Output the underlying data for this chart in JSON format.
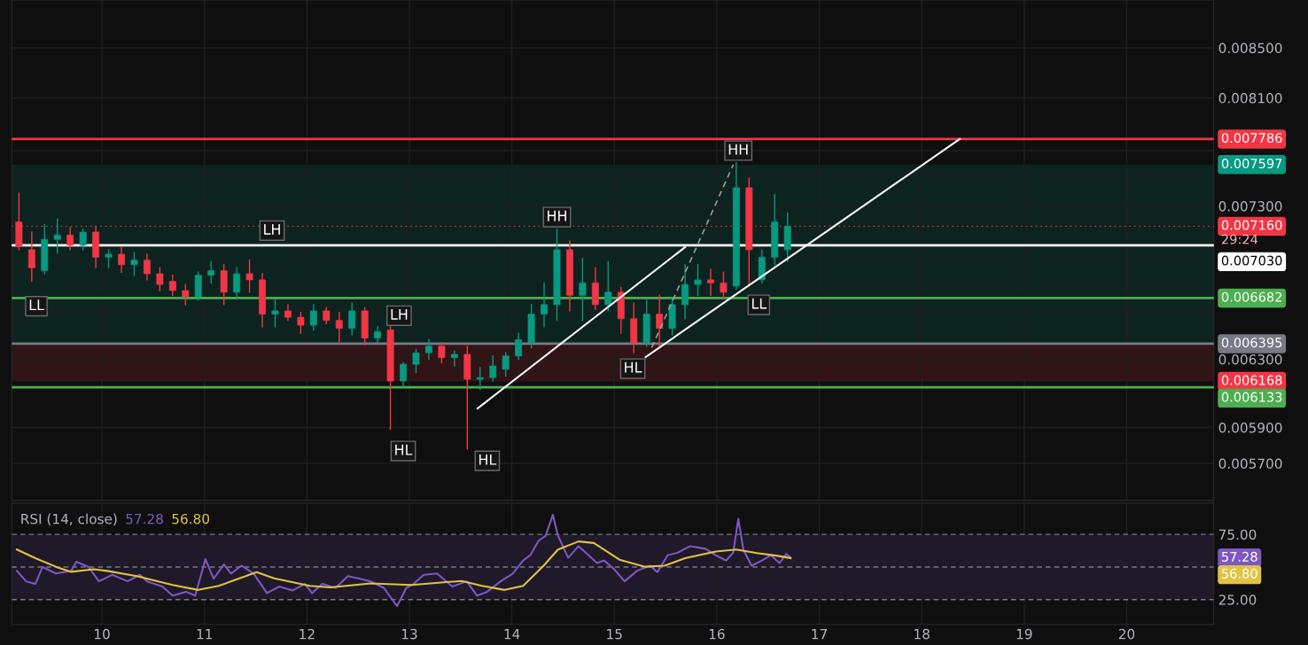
{
  "chart_data": [
    {
      "type": "candlestick",
      "log": "y",
      "grid": true,
      "tick_labels": "y",
      "xlim": [
        9.12,
        20.85
      ],
      "ylim": [
        0.0055,
        0.0089
      ],
      "xticks": [
        10,
        11,
        12,
        13,
        14,
        15,
        16,
        17,
        18,
        19,
        20
      ],
      "yticks": [
        {
          "value": 0.0085,
          "label": "0.008500"
        },
        {
          "value": 0.0081,
          "label": "0.008100"
        },
        {
          "value": 0.0077,
          "label": null
        },
        {
          "value": 0.0073,
          "label": "0.007300"
        },
        {
          "value": 0.0066,
          "label": null
        },
        {
          "value": 0.0063,
          "label": "0.006300"
        },
        {
          "value": 0.0059,
          "label": "0.005900"
        },
        {
          "value": 0.0057,
          "label": "0.005700"
        }
      ],
      "x": [
        9.19,
        9.315,
        9.44,
        9.565,
        9.69,
        9.815,
        9.94,
        10.065,
        10.19,
        10.315,
        10.44,
        10.565,
        10.69,
        10.815,
        10.94,
        11.065,
        11.19,
        11.315,
        11.44,
        11.565,
        11.69,
        11.815,
        11.94,
        12.065,
        12.19,
        12.315,
        12.44,
        12.565,
        12.69,
        12.815,
        12.94,
        13.065,
        13.19,
        13.315,
        13.44,
        13.565,
        13.69,
        13.815,
        13.94,
        14.065,
        14.19,
        14.315,
        14.44,
        14.565,
        14.69,
        14.815,
        14.94,
        15.065,
        15.19,
        15.315,
        15.44,
        15.565,
        15.69,
        15.815,
        15.94,
        16.065,
        16.19,
        16.315,
        16.44,
        16.565,
        16.69
      ],
      "ohlc": [
        [
          0.00719,
          0.00739,
          0.007,
          0.00702
        ],
        [
          0.007,
          0.00712,
          0.00679,
          0.00688
        ],
        [
          0.00686,
          0.00717,
          0.00684,
          0.00707
        ],
        [
          0.00707,
          0.00721,
          0.00698,
          0.0071
        ],
        [
          0.0071,
          0.00715,
          0.007,
          0.00703
        ],
        [
          0.00703,
          0.00714,
          0.007,
          0.00712
        ],
        [
          0.00712,
          0.00716,
          0.00688,
          0.00695
        ],
        [
          0.00695,
          0.007,
          0.00688,
          0.00697
        ],
        [
          0.00697,
          0.00702,
          0.00685,
          0.0069
        ],
        [
          0.0069,
          0.00698,
          0.00683,
          0.00693
        ],
        [
          0.00693,
          0.00697,
          0.0068,
          0.00684
        ],
        [
          0.00684,
          0.00688,
          0.00673,
          0.00677
        ],
        [
          0.00679,
          0.00683,
          0.0067,
          0.00673
        ],
        [
          0.00673,
          0.00677,
          0.00664,
          0.00669
        ],
        [
          0.00669,
          0.00685,
          0.00667,
          0.00683
        ],
        [
          0.00683,
          0.00692,
          0.00678,
          0.00686
        ],
        [
          0.00686,
          0.0069,
          0.00664,
          0.00672
        ],
        [
          0.00672,
          0.00688,
          0.00668,
          0.00684
        ],
        [
          0.00684,
          0.00693,
          0.00672,
          0.0068
        ],
        [
          0.0068,
          0.00684,
          0.0065,
          0.00658
        ],
        [
          0.00658,
          0.00667,
          0.0065,
          0.0066
        ],
        [
          0.0066,
          0.00664,
          0.00654,
          0.00656
        ],
        [
          0.00656,
          0.00659,
          0.00646,
          0.00651
        ],
        [
          0.00651,
          0.00664,
          0.00648,
          0.0066
        ],
        [
          0.0066,
          0.00662,
          0.00652,
          0.00654
        ],
        [
          0.00654,
          0.00659,
          0.0064,
          0.00649
        ],
        [
          0.00649,
          0.00665,
          0.00645,
          0.0066
        ],
        [
          0.0066,
          0.00662,
          0.00639,
          0.00643
        ],
        [
          0.00643,
          0.0065,
          0.0064,
          0.00647
        ],
        [
          0.00648,
          0.00651,
          0.00589,
          0.00617
        ],
        [
          0.00617,
          0.00628,
          0.00613,
          0.00627
        ],
        [
          0.00627,
          0.00636,
          0.00622,
          0.00634
        ],
        [
          0.00634,
          0.00642,
          0.0063,
          0.00638
        ],
        [
          0.00638,
          0.0064,
          0.00628,
          0.00631
        ],
        [
          0.00631,
          0.00635,
          0.00626,
          0.00633
        ],
        [
          0.00633,
          0.00638,
          0.00578,
          0.00618
        ],
        [
          0.00618,
          0.00625,
          0.00612,
          0.00619
        ],
        [
          0.00619,
          0.00632,
          0.00617,
          0.00626
        ],
        [
          0.00624,
          0.00634,
          0.0062,
          0.00632
        ],
        [
          0.00632,
          0.00646,
          0.0063,
          0.00642
        ],
        [
          0.0064,
          0.00664,
          0.00637,
          0.00658
        ],
        [
          0.00658,
          0.00678,
          0.0065,
          0.00664
        ],
        [
          0.00664,
          0.00714,
          0.00654,
          0.007
        ],
        [
          0.007,
          0.00706,
          0.0066,
          0.0067
        ],
        [
          0.0067,
          0.00694,
          0.00654,
          0.00678
        ],
        [
          0.00678,
          0.00688,
          0.00661,
          0.00664
        ],
        [
          0.00664,
          0.00692,
          0.0066,
          0.00672
        ],
        [
          0.00672,
          0.00675,
          0.00646,
          0.00655
        ],
        [
          0.00655,
          0.00665,
          0.00634,
          0.0064
        ],
        [
          0.0064,
          0.00668,
          0.00638,
          0.00658
        ],
        [
          0.00658,
          0.0067,
          0.00637,
          0.00649
        ],
        [
          0.00649,
          0.00668,
          0.00645,
          0.00664
        ],
        [
          0.00664,
          0.0069,
          0.00655,
          0.00677
        ],
        [
          0.00677,
          0.0069,
          0.0067,
          0.0068
        ],
        [
          0.0068,
          0.00687,
          0.0067,
          0.00678
        ],
        [
          0.00678,
          0.00685,
          0.00668,
          0.00672
        ],
        [
          0.00676,
          0.00761,
          0.00674,
          0.00743
        ],
        [
          0.00743,
          0.0075,
          0.00676,
          0.007
        ],
        [
          0.0068,
          0.007,
          0.00678,
          0.00695
        ],
        [
          0.00695,
          0.00738,
          0.0069,
          0.00719
        ],
        [
          0.007,
          0.00725,
          0.00692,
          0.00716
        ]
      ],
      "series": [
        {
          "type": "line",
          "color": "#ffffff",
          "x": [
            13.665,
            15.69
          ],
          "values": [
            0.006009,
            0.007017
          ]
        },
        {
          "type": "line",
          "color": "#ffffff",
          "x": [
            15.305,
            18.37
          ],
          "values": [
            0.006313,
            0.007786
          ]
        },
        {
          "type": "line",
          "color": "#9a9a9a",
          "line_style": "dashed",
          "x": [
            15.365,
            16.16
          ],
          "values": [
            0.006372,
            0.007596
          ]
        }
      ],
      "ref_lines": [
        {
          "axis": "y",
          "value": 0.007786,
          "label": "0.007786",
          "color": "#f23645"
        },
        {
          "axis": "y",
          "value": 0.00716,
          "label": "0.007160",
          "color": "#f23645",
          "line_style": "dotted"
        },
        {
          "axis": "y",
          "value": 0.00703,
          "label": "0.007030",
          "color": "#ffffff"
        },
        {
          "axis": "y",
          "value": 0.006682,
          "label": "0.006682",
          "color": "#4caf50"
        },
        {
          "axis": "y",
          "value": 0.006395,
          "label": "0.006395",
          "color": "#787b86"
        },
        {
          "axis": "y",
          "value": 0.006133,
          "label": "0.006133",
          "color": "#4caf50"
        }
      ],
      "bands": [
        {
          "axis": "y",
          "from": 0.006395,
          "to": 0.007597,
          "label": "0.007597",
          "color": "#089981"
        },
        {
          "axis": "y",
          "from": 0.006168,
          "to": 0.006395,
          "label": "0.006168",
          "color": "#f23645"
        }
      ],
      "annotations": [
        "29:24",
        {
          "text": "LL",
          "x": 9.36,
          "y": 0.00663
        },
        {
          "text": "LH",
          "x": 11.66,
          "y": 0.00713
        },
        {
          "text": "LH",
          "x": 12.9,
          "y": 0.00657
        },
        {
          "text": "HL",
          "x": 12.94,
          "y": 0.005768
        },
        {
          "text": "HL",
          "x": 13.76,
          "y": 0.005714
        },
        {
          "text": "HH",
          "x": 14.44,
          "y": 0.007223
        },
        {
          "text": "HL",
          "x": 15.18,
          "y": 0.006244
        },
        {
          "text": "HH",
          "x": 16.21,
          "y": 0.0077
        },
        {
          "text": "LL",
          "x": 16.41,
          "y": 0.006639
        }
      ]
    },
    {
      "type": "line",
      "title": "RSI (14, close)",
      "grid": "x",
      "xlim": [
        9.12,
        20.85
      ],
      "ylim": [
        6,
        99
      ],
      "xticks": [
        10,
        11,
        12,
        13,
        14,
        15,
        16,
        17,
        18,
        19,
        20
      ],
      "yticks": [
        {
          "value": 75,
          "label": "75.00"
        },
        {
          "value": 25,
          "label": "25.00"
        }
      ],
      "series": [
        {
          "color": "#7e57c2",
          "x": [
            9.17,
            9.26,
            9.35,
            9.42,
            9.55,
            9.7,
            9.75,
            9.87,
            9.97,
            10.1,
            10.25,
            10.37,
            10.44,
            10.59,
            10.69,
            10.82,
            10.91,
            11.01,
            11.09,
            11.19,
            11.26,
            11.36,
            11.48,
            11.61,
            11.73,
            11.86,
            11.98,
            12.05,
            12.15,
            12.28,
            12.4,
            12.52,
            12.62,
            12.75,
            12.88,
            12.97,
            13.04,
            13.14,
            13.27,
            13.42,
            13.56,
            13.66,
            13.76,
            13.89,
            14.01,
            14.11,
            14.18,
            14.26,
            14.33,
            14.4,
            14.45,
            14.55,
            14.65,
            14.75,
            14.83,
            14.9,
            14.99,
            15.1,
            15.22,
            15.35,
            15.42,
            15.52,
            15.62,
            15.74,
            15.89,
            15.99,
            16.09,
            16.16,
            16.21,
            16.26,
            16.34,
            16.44,
            16.53,
            16.61,
            16.68,
            16.72
          ],
          "values": [
            47,
            39,
            37,
            50,
            45,
            47,
            54,
            50,
            39,
            44,
            39,
            44,
            39,
            35,
            28,
            31,
            28,
            56,
            41,
            52,
            45,
            51,
            45,
            30,
            35,
            32,
            37,
            30,
            37,
            34,
            43,
            41,
            39,
            34,
            20,
            34,
            37,
            44,
            45,
            35,
            39,
            28,
            31,
            39,
            45,
            55,
            59,
            70,
            74,
            90,
            74,
            57,
            66,
            59,
            53,
            55,
            49,
            39,
            47,
            51,
            46,
            59,
            61,
            66,
            64,
            59,
            55,
            61,
            87,
            63,
            51,
            55,
            59,
            53,
            60,
            57
          ]
        },
        {
          "color": "#e0c341",
          "x": [
            9.17,
            9.35,
            9.55,
            9.7,
            9.92,
            10.05,
            10.34,
            10.69,
            10.94,
            11.14,
            11.51,
            11.68,
            12.03,
            12.23,
            12.62,
            13.02,
            13.51,
            13.71,
            13.93,
            14.11,
            14.31,
            14.45,
            14.65,
            14.8,
            15.05,
            15.3,
            15.49,
            15.69,
            15.99,
            16.19,
            16.39,
            16.58,
            16.72
          ],
          "values": [
            63.4,
            56.8,
            50.2,
            46.3,
            48.3,
            47,
            43,
            36.2,
            32.4,
            35.5,
            46,
            41.3,
            35.5,
            34.3,
            37.4,
            36.2,
            39.3,
            35.5,
            32.4,
            35.5,
            51,
            63.4,
            69.6,
            68.4,
            55.6,
            50.2,
            51,
            56.8,
            61.8,
            63.4,
            60.7,
            58.7,
            56.8
          ]
        }
      ],
      "bands": [
        {
          "axis": "y",
          "from": 25,
          "to": 75,
          "color": "#7e57c2"
        }
      ],
      "ref_lines": [
        {
          "axis": "y",
          "value": 75,
          "color": "#787b86",
          "line_style": "dashed"
        },
        {
          "axis": "y",
          "value": 50,
          "color": "#787b86",
          "line_style": "dashed"
        },
        {
          "axis": "y",
          "value": 25,
          "color": "#787b86",
          "line_style": "dashed"
        }
      ],
      "annotations": [
        "57.28",
        "56.80"
      ]
    }
  ]
}
